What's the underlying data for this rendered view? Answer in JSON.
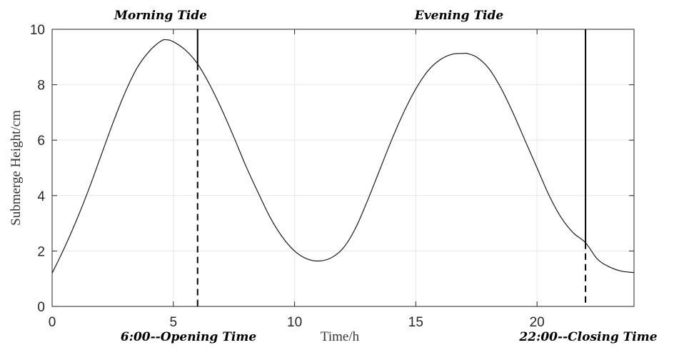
{
  "chart_data": {
    "type": "line",
    "xlabel": "Time/h",
    "ylabel": "Submerge Height/cm",
    "xlim": [
      0,
      24
    ],
    "ylim": [
      0,
      10
    ],
    "xticks": [
      0,
      5,
      10,
      15,
      20
    ],
    "yticks": [
      0,
      2,
      4,
      6,
      8,
      10
    ],
    "grid": true,
    "series": [
      {
        "name": "",
        "color": "#1a1a1a",
        "x": [
          0,
          0.5,
          1,
          1.5,
          2,
          2.5,
          3,
          3.5,
          4,
          4.5,
          4.75,
          5,
          5.5,
          6,
          6.5,
          7,
          7.5,
          8,
          8.5,
          9,
          9.5,
          10,
          10.5,
          11,
          11.5,
          12,
          12.5,
          13,
          13.5,
          14,
          14.5,
          15,
          15.5,
          16,
          16.5,
          17,
          17.1,
          17.5,
          18,
          18.5,
          19,
          19.5,
          20,
          20.5,
          21,
          21.5,
          22,
          22.5,
          23,
          23.5,
          24
        ],
        "y": [
          1.2,
          2.1,
          3.1,
          4.2,
          5.4,
          6.6,
          7.7,
          8.6,
          9.2,
          9.58,
          9.62,
          9.55,
          9.25,
          8.75,
          8.0,
          7.1,
          6.1,
          5.05,
          4.1,
          3.2,
          2.5,
          2.0,
          1.72,
          1.64,
          1.75,
          2.1,
          2.8,
          3.8,
          4.9,
          6.0,
          7.0,
          7.85,
          8.5,
          8.9,
          9.1,
          9.13,
          9.13,
          9.0,
          8.6,
          7.9,
          7.0,
          6.0,
          5.0,
          4.0,
          3.2,
          2.65,
          2.3,
          1.7,
          1.42,
          1.27,
          1.22
        ]
      }
    ],
    "vlines": [
      {
        "x": 6,
        "solid_above": 8.75
      },
      {
        "x": 22,
        "solid_above": 2.3
      }
    ],
    "annotations": {
      "morning": "Morning Tide",
      "evening": "Evening  Tide",
      "opening": "6:00--Opening Time",
      "closing": "22:00--Closing Time"
    }
  }
}
